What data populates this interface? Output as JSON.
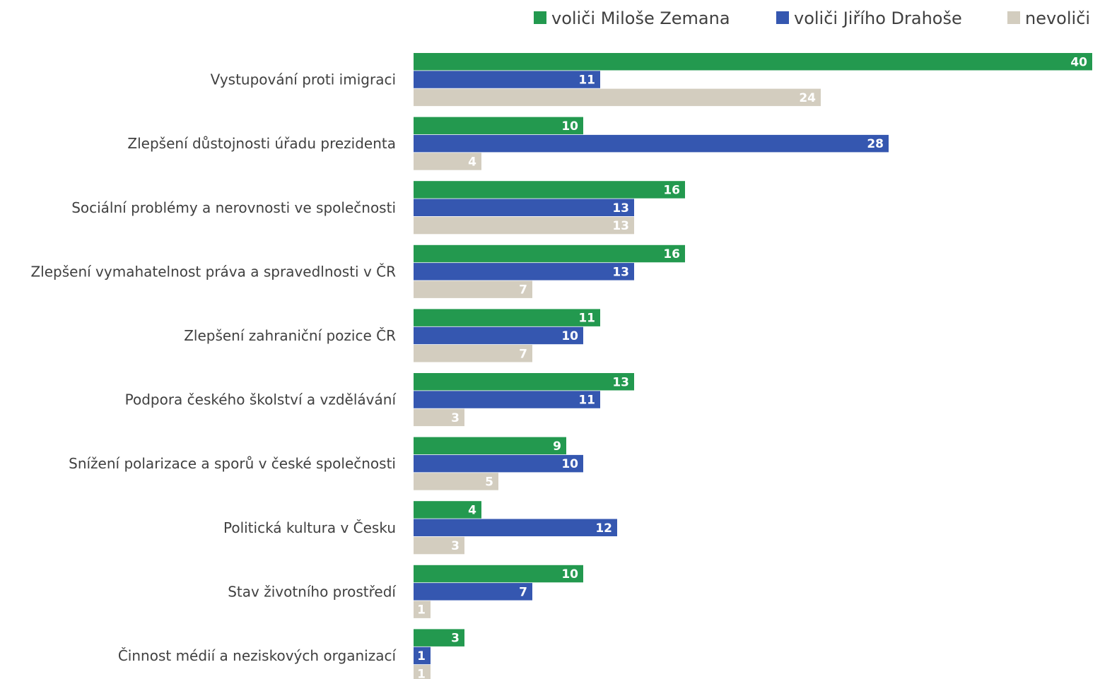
{
  "chart_data": {
    "type": "bar",
    "orientation": "horizontal",
    "categories": [
      "Vystupování proti imigraci",
      "Zlepšení důstojnosti úřadu prezidenta",
      "Sociální problémy a nerovnosti ve společnosti",
      "Zlepšení vymahatelnost práva a spravedlnosti v ČR",
      "Zlepšení zahraniční pozice ČR",
      "Podpora českého školství a vzdělávání",
      "Snížení polarizace a sporů v české společnosti",
      "Politická kultura v Česku",
      "Stav životního prostředí",
      "Činnost médií a neziskových organizací"
    ],
    "series": [
      {
        "name": "voliči Miloše Zemana",
        "color": "#23994f",
        "values": [
          40,
          10,
          16,
          16,
          11,
          13,
          9,
          4,
          10,
          3
        ]
      },
      {
        "name": "voliči Jiřího Drahoše",
        "color": "#3557b0",
        "values": [
          11,
          28,
          13,
          13,
          10,
          11,
          10,
          12,
          7,
          1
        ]
      },
      {
        "name": "nevoliči",
        "color": "#d3cdbf",
        "values": [
          24,
          4,
          13,
          7,
          7,
          3,
          5,
          3,
          1,
          1
        ]
      }
    ],
    "data_labels": true,
    "legend_position": "top-right",
    "grid": false,
    "axis_visible": false,
    "title": "",
    "xlabel": "",
    "ylabel": ""
  }
}
